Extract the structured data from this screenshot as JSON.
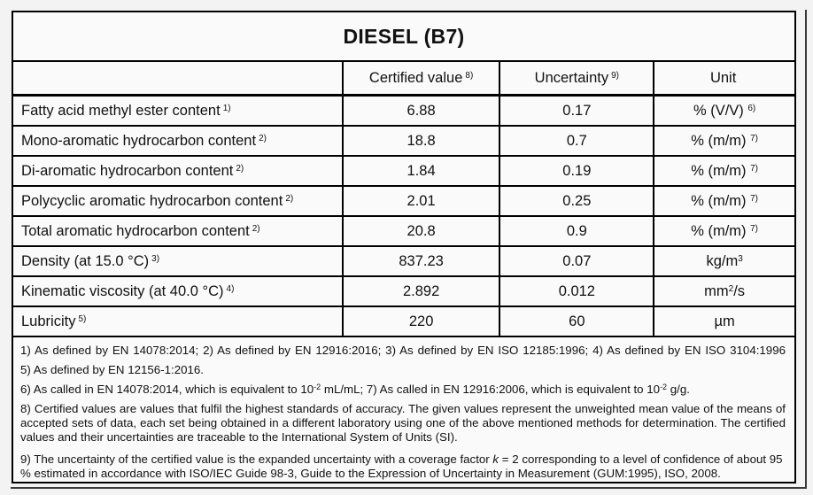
{
  "title": "DIESEL (B7)",
  "colors": {
    "border": "#000000",
    "page_bg": "#f3f3f3",
    "paper_bg": "#fafafa",
    "text": "#111111"
  },
  "table": {
    "columns": [
      {
        "label": ""
      },
      {
        "label": "Certified value",
        "sup": "8)"
      },
      {
        "label": "Uncertainty",
        "sup": "9)"
      },
      {
        "label": "Unit"
      }
    ],
    "rows": [
      {
        "label": "Fatty acid methyl ester content",
        "label_sup": "1)",
        "certified_value": "6.88",
        "uncertainty": "0.17",
        "unit": "% (V/V) ",
        "unit_sup": "6)",
        "unit_post": ""
      },
      {
        "label": "Mono-aromatic hydrocarbon content",
        "label_sup": "2)",
        "certified_value": "18.8",
        "uncertainty": "0.7",
        "unit": "% (m/m) ",
        "unit_sup": "7)",
        "unit_post": ""
      },
      {
        "label": "Di-aromatic hydrocarbon content",
        "label_sup": "2)",
        "certified_value": "1.84",
        "uncertainty": "0.19",
        "unit": "% (m/m) ",
        "unit_sup": "7)",
        "unit_post": ""
      },
      {
        "label": "Polycyclic aromatic hydrocarbon content",
        "label_sup": "2)",
        "certified_value": "2.01",
        "uncertainty": "0.25",
        "unit": "% (m/m) ",
        "unit_sup": "7)",
        "unit_post": ""
      },
      {
        "label": "Total aromatic hydrocarbon content",
        "label_sup": "2)",
        "certified_value": "20.8",
        "uncertainty": "0.9",
        "unit": "% (m/m) ",
        "unit_sup": "7)",
        "unit_post": ""
      },
      {
        "label": "Density (at 15.0 °C)",
        "label_sup": "3)",
        "certified_value": "837.23",
        "uncertainty": "0.07",
        "unit": "kg/m",
        "unit_sup": "3",
        "unit_post": ""
      },
      {
        "label": "Kinematic viscosity (at 40.0 °C)",
        "label_sup": "4)",
        "certified_value": "2.892",
        "uncertainty": "0.012",
        "unit": "mm",
        "unit_sup": "2",
        "unit_post": "/s"
      },
      {
        "label": "Lubricity",
        "label_sup": "5)",
        "certified_value": "220",
        "uncertainty": "60",
        "unit": "µm",
        "unit_sup": "",
        "unit_post": ""
      }
    ]
  },
  "footnotes": [
    {
      "segments": [
        {
          "t": "1) As defined by EN 14078:2014; 2) As defined by EN 12916:2016; 3) As defined by EN ISO 12185:1996; 4) As defined by EN ISO 3104:1996"
        }
      ]
    },
    {
      "segments": [
        {
          "t": "5) As defined by EN 12156-1:2016."
        }
      ]
    },
    {
      "segments": [
        {
          "t": "6) As called in EN 14078:2014, which is equivalent to 10"
        },
        {
          "t": "-2",
          "sup": true
        },
        {
          "t": " mL/mL; 7) As called in EN 12916:2006, which is equivalent to 10"
        },
        {
          "t": "-2",
          "sup": true
        },
        {
          "t": " g/g."
        }
      ]
    },
    {
      "segments": [
        {
          "t": "8) Certified values are values that fulfil the highest standards of accuracy. The given values represent the unweighted mean value of the means of accepted sets of data, each set being obtained in a different laboratory using one of the above mentioned methods for determination. The certified values and their uncertainties are traceable to the International System of Units (SI)."
        }
      ]
    },
    {
      "segments": [
        {
          "t": "9) The uncertainty of the certified value is the expanded uncertainty with a coverage factor "
        },
        {
          "t": "k",
          "italic": true
        },
        {
          "t": " = 2 corresponding to a level of confidence of about 95 % estimated in accordance with ISO/IEC Guide 98-3, Guide to the Expression of Uncertainty in Measurement (GUM:1995), ISO, 2008."
        }
      ]
    }
  ]
}
